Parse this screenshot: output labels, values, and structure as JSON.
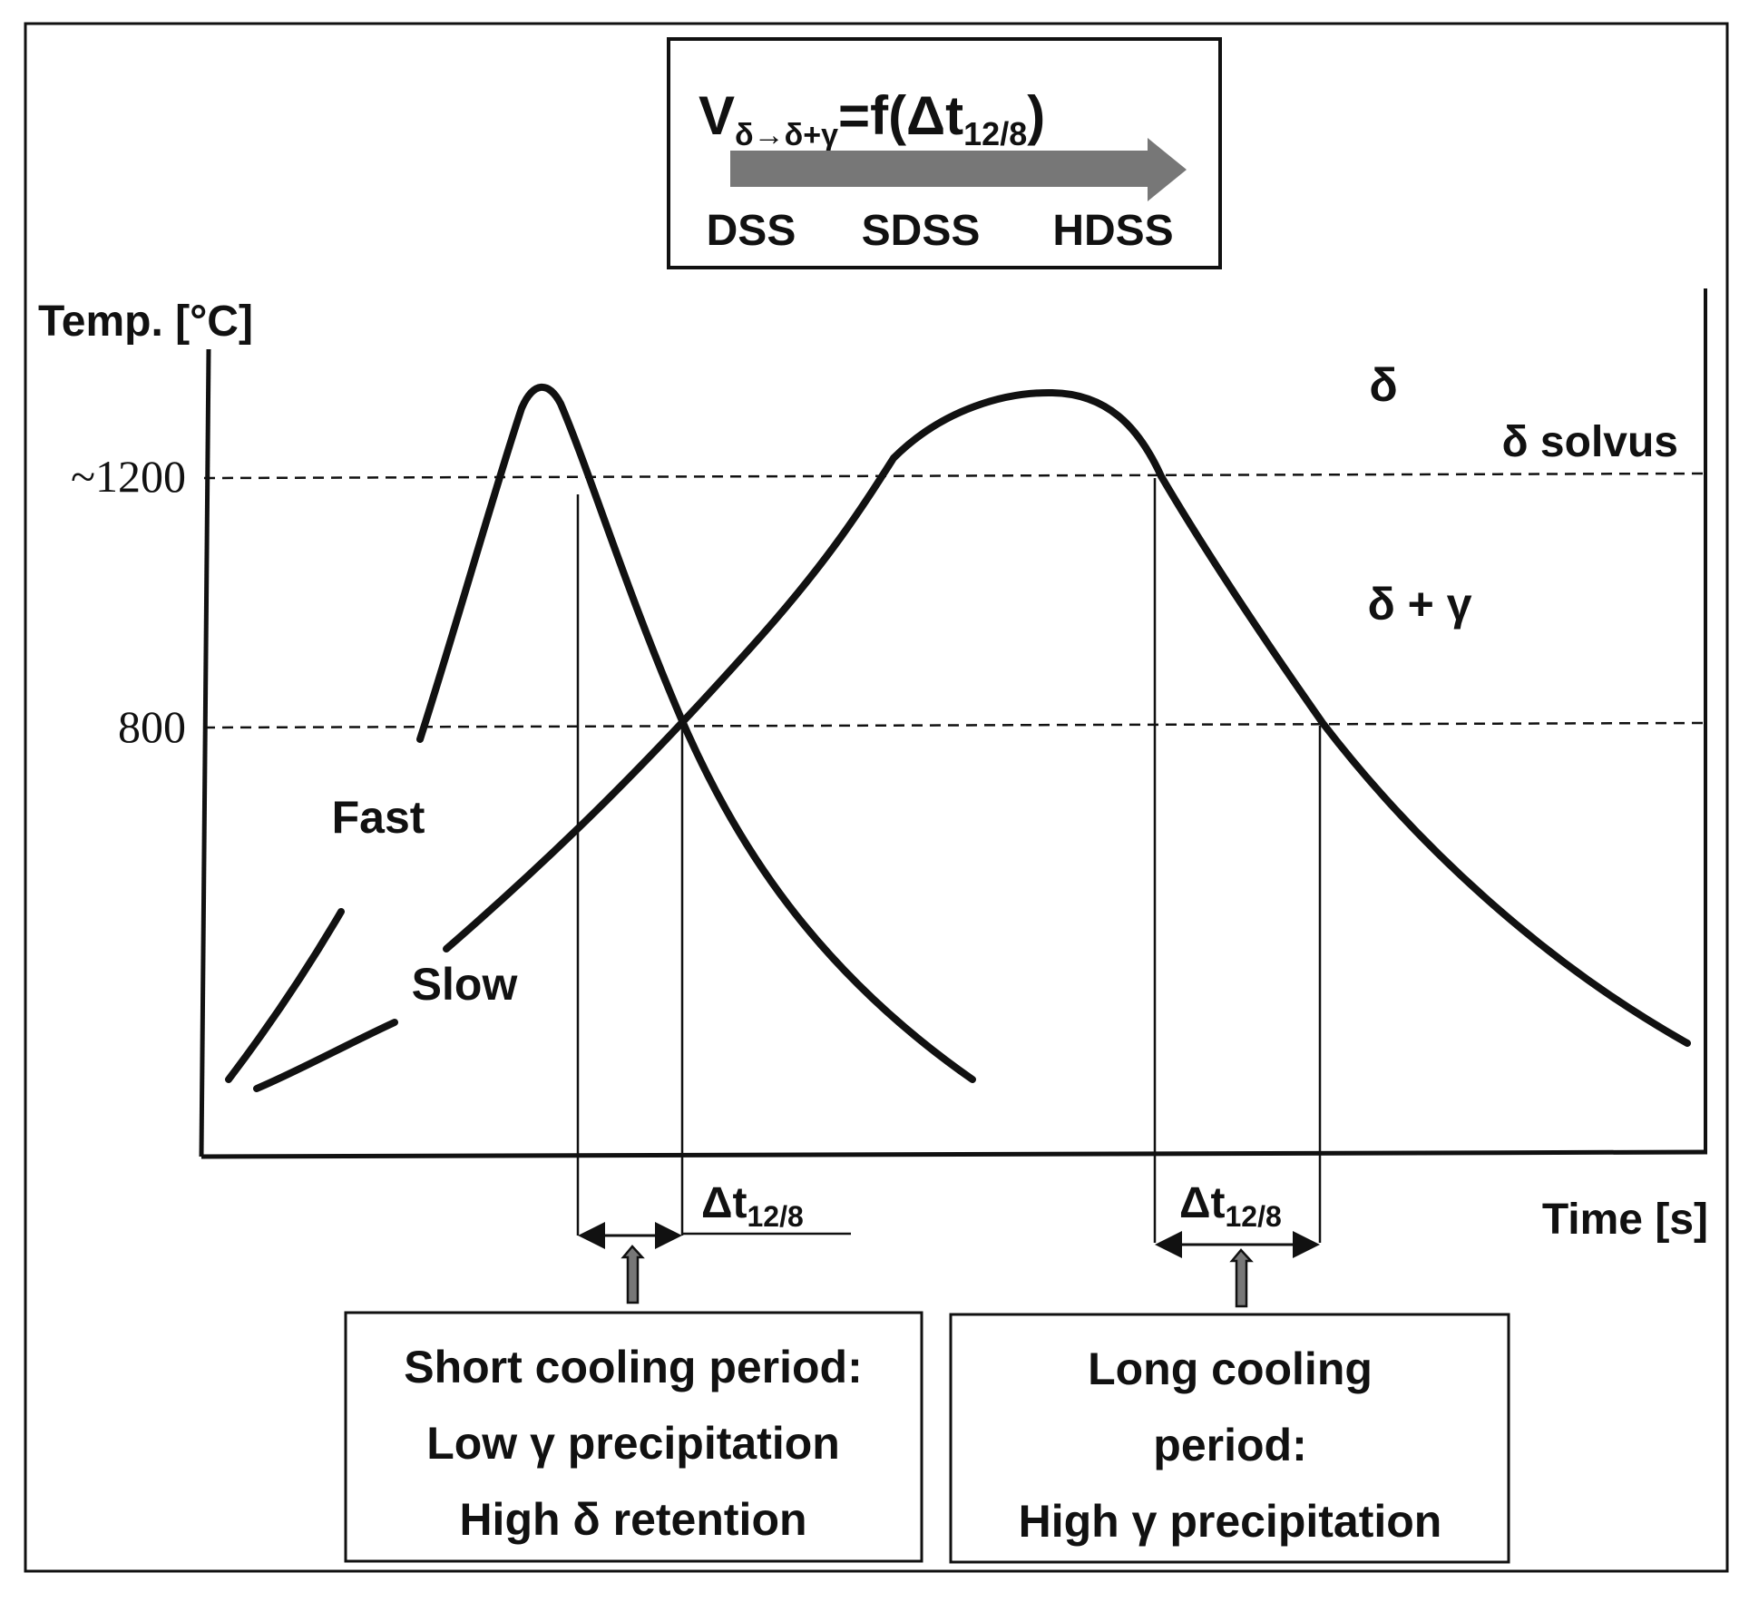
{
  "formula": {
    "main": "V",
    "subscript": "δ→δ+γ",
    "equals": "=f(",
    "delta_t": "Δt",
    "delta_sub": "12/8",
    "close": ")"
  },
  "steel_grades": [
    "DSS",
    "SDSS",
    "HDSS"
  ],
  "axes": {
    "y_label": "Temp.  [°C]",
    "x_label": "Time  [s]",
    "y_ticks": [
      "~1200",
      "800"
    ]
  },
  "phase_labels": {
    "delta": "δ",
    "delta_solvus": "δ solvus",
    "delta_gamma": "δ + γ"
  },
  "curve_labels": {
    "fast": "Fast",
    "slow": "Slow"
  },
  "interval_labels": {
    "left_main": "Δt",
    "left_sub": "12/8",
    "right_main": "Δt",
    "right_sub": "12/8"
  },
  "boxes": {
    "short": [
      "Short cooling period:",
      "Low γ precipitation",
      "High δ retention"
    ],
    "long": [
      "Long cooling",
      "period:",
      "High γ precipitation"
    ]
  },
  "colors": {
    "line": "#111111",
    "arrow_fill": "#777777",
    "background": "#ffffff"
  }
}
